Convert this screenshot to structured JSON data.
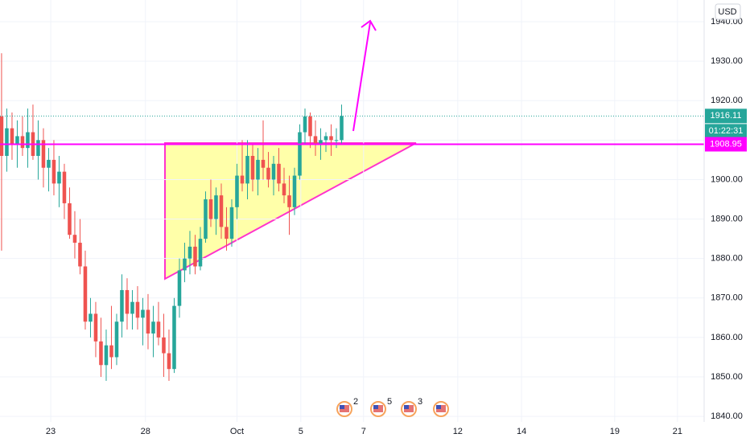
{
  "chart_data": {
    "type": "candlestick",
    "currency": "USD",
    "x": [
      0,
      1,
      2,
      3,
      4,
      5,
      6,
      7,
      8,
      9,
      10,
      11,
      12,
      13,
      14,
      15,
      16,
      17,
      18,
      19,
      20,
      21,
      22,
      23,
      24,
      25,
      26,
      27,
      28,
      29,
      30,
      31,
      32,
      33,
      34,
      35,
      36,
      37,
      38,
      39,
      40,
      41,
      42,
      43,
      44,
      45,
      46,
      47,
      48,
      49,
      50,
      51,
      52,
      53,
      54,
      55,
      56,
      57,
      58,
      59,
      60,
      61,
      62,
      63,
      64,
      65
    ],
    "open": [
      1916,
      1906,
      1913,
      1909,
      1911,
      1908,
      1912,
      1906,
      1910,
      1903,
      1905,
      1899,
      1902,
      1894,
      1886,
      1884,
      1878,
      1864,
      1866,
      1859,
      1853,
      1858,
      1855,
      1864,
      1872,
      1866,
      1869,
      1865,
      1867,
      1861,
      1864,
      1860,
      1856,
      1852,
      1868,
      1877,
      1880,
      1883,
      1878,
      1885,
      1895,
      1890,
      1896,
      1888,
      1885,
      1893,
      1901,
      1899,
      1906,
      1900,
      1905,
      1903,
      1900,
      1904,
      1899,
      1896,
      1893,
      1901,
      1912,
      1916,
      1911,
      1909,
      1910,
      1911,
      1910,
      1910
    ],
    "high": [
      1932,
      1918,
      1917,
      1915,
      1916,
      1918,
      1919,
      1915,
      1913,
      1908,
      1910,
      1906,
      1904,
      1898,
      1892,
      1890,
      1882,
      1870,
      1869,
      1865,
      1862,
      1868,
      1866,
      1876,
      1875,
      1872,
      1873,
      1870,
      1871,
      1868,
      1869,
      1866,
      1862,
      1870,
      1880,
      1884,
      1887,
      1886,
      1888,
      1897,
      1900,
      1898,
      1899,
      1893,
      1895,
      1904,
      1910,
      1910,
      1909,
      1908,
      1915,
      1907,
      1906,
      1908,
      1903,
      1901,
      1903,
      1914,
      1918,
      1917,
      1915,
      1913,
      1912,
      1914,
      1913,
      1919
    ],
    "low": [
      1882,
      1902,
      1905,
      1903,
      1906,
      1903,
      1905,
      1900,
      1898,
      1897,
      1896,
      1893,
      1890,
      1885,
      1880,
      1876,
      1862,
      1860,
      1855,
      1850,
      1849,
      1852,
      1853,
      1860,
      1862,
      1862,
      1862,
      1858,
      1857,
      1855,
      1858,
      1850,
      1849,
      1851,
      1865,
      1874,
      1876,
      1876,
      1877,
      1884,
      1888,
      1886,
      1885,
      1882,
      1883,
      1890,
      1897,
      1895,
      1897,
      1896,
      1900,
      1898,
      1896,
      1897,
      1894,
      1886,
      1891,
      1900,
      1909,
      1908,
      1906,
      1905,
      1907,
      1906,
      1908,
      1909
    ],
    "close": [
      1906,
      1913,
      1909,
      1911,
      1908,
      1912,
      1906,
      1910,
      1903,
      1905,
      1899,
      1902,
      1894,
      1886,
      1884,
      1878,
      1864,
      1866,
      1859,
      1853,
      1858,
      1855,
      1864,
      1872,
      1866,
      1869,
      1865,
      1867,
      1861,
      1864,
      1860,
      1856,
      1852,
      1868,
      1877,
      1880,
      1883,
      1878,
      1885,
      1895,
      1890,
      1896,
      1888,
      1885,
      1893,
      1901,
      1899,
      1906,
      1900,
      1905,
      1903,
      1900,
      1904,
      1899,
      1896,
      1893,
      1901,
      1912,
      1916,
      1911,
      1909,
      1910,
      1911,
      1910,
      1910,
      1916.11
    ],
    "up_color": "#26a69a",
    "down_color": "#ef5350",
    "xlim": [
      -0.3,
      134.3
    ],
    "xticks": [
      {
        "value": 9.4,
        "label": "23"
      },
      {
        "value": 27.5,
        "label": "28"
      },
      {
        "value": 45,
        "label": "Oct"
      },
      {
        "value": 57.2,
        "label": "5"
      },
      {
        "value": 69.2,
        "label": "7"
      },
      {
        "value": 87.2,
        "label": "12"
      },
      {
        "value": 99.4,
        "label": "14"
      },
      {
        "value": 117.2,
        "label": "19"
      },
      {
        "value": 129.2,
        "label": "21"
      }
    ],
    "ylim": [
      1838.6,
      1945.5
    ],
    "yticks": [
      {
        "value": 1840,
        "label": "1840.00"
      },
      {
        "value": 1850,
        "label": "1850.00"
      },
      {
        "value": 1860,
        "label": "1860.00"
      },
      {
        "value": 1870,
        "label": "1870.00"
      },
      {
        "value": 1880,
        "label": "1880.00"
      },
      {
        "value": 1890,
        "label": "1890.00"
      },
      {
        "value": 1900,
        "label": "1900.00"
      },
      {
        "value": 1910,
        "label": "1910.00"
      },
      {
        "value": 1920,
        "label": "1920.00"
      },
      {
        "value": 1930,
        "label": "1930.00"
      },
      {
        "value": 1940,
        "label": "1940.00"
      }
    ],
    "grid": true,
    "level": 1908.95,
    "level_color": "#ff00ff",
    "countdown": "01:22:31",
    "events": [
      "2",
      "5",
      "3"
    ]
  }
}
